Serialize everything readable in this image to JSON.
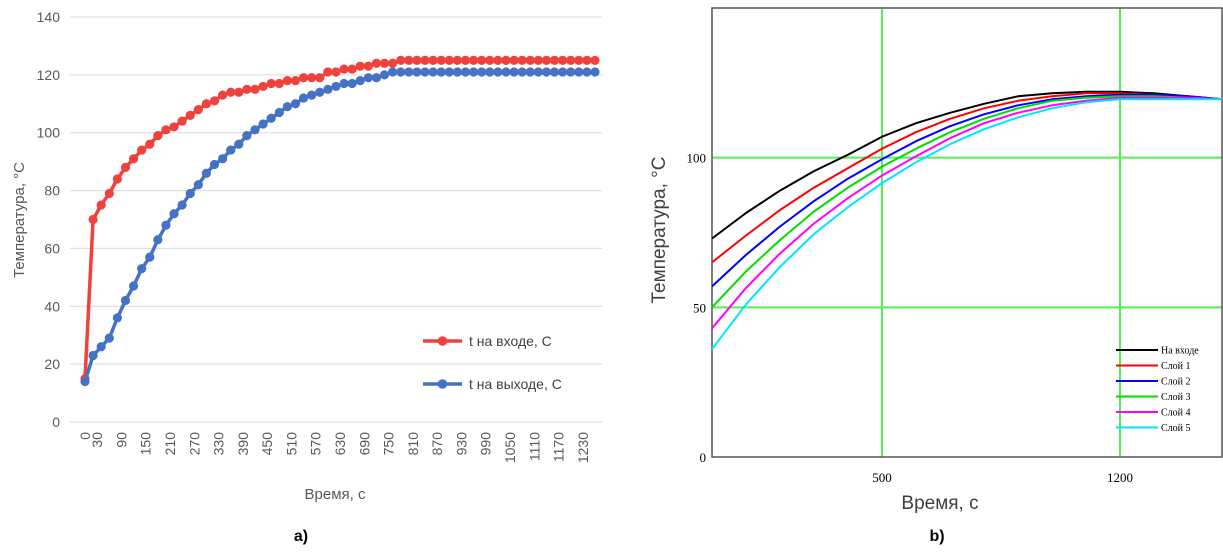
{
  "chart_data": [
    {
      "type": "line",
      "panel_label": "a)",
      "xlabel": "Время, с",
      "ylabel": "Температура, °С",
      "ylim": [
        0,
        140
      ],
      "yticks": [
        0,
        20,
        40,
        60,
        80,
        100,
        120,
        140
      ],
      "xticks": [
        "0",
        "30",
        "90",
        "150",
        "210",
        "270",
        "330",
        "390",
        "450",
        "510",
        "570",
        "630",
        "690",
        "750",
        "810",
        "870",
        "930",
        "990",
        "1050",
        "1110",
        "1170",
        "1230"
      ],
      "x": [
        0,
        20,
        40,
        60,
        80,
        100,
        120,
        140,
        160,
        180,
        200,
        220,
        240,
        260,
        280,
        300,
        320,
        340,
        360,
        380,
        400,
        420,
        440,
        460,
        480,
        500,
        520,
        540,
        560,
        580,
        600,
        620,
        640,
        660,
        680,
        700,
        720,
        740,
        760,
        780,
        800,
        820,
        840,
        860,
        880,
        900,
        920,
        940,
        960,
        980,
        1000,
        1020,
        1040,
        1060,
        1080,
        1100,
        1120,
        1140,
        1160,
        1180,
        1200,
        1220,
        1240,
        1260
      ],
      "grid": "horizontal",
      "legend_position": "bottom-right",
      "series": [
        {
          "name": "t на входе, С",
          "color": "#f0413c",
          "values": [
            15,
            70,
            75,
            79,
            84,
            88,
            91,
            94,
            96,
            99,
            101,
            102,
            104,
            106,
            108,
            110,
            111,
            113,
            114,
            114,
            115,
            115,
            116,
            117,
            117,
            118,
            118,
            119,
            119,
            119,
            121,
            121,
            122,
            122,
            123,
            123,
            124,
            124,
            124,
            125,
            125,
            125,
            125,
            125,
            125,
            125,
            125,
            125,
            125,
            125,
            125,
            125,
            125,
            125,
            125,
            125,
            125,
            125,
            125,
            125,
            125,
            125,
            125,
            125
          ]
        },
        {
          "name": "t на выходе, С",
          "color": "#4472c4",
          "values": [
            14,
            23,
            26,
            29,
            36,
            42,
            47,
            53,
            57,
            63,
            68,
            72,
            75,
            79,
            82,
            86,
            89,
            91,
            94,
            96,
            99,
            101,
            103,
            105,
            107,
            109,
            110,
            112,
            113,
            114,
            115,
            116,
            117,
            117,
            118,
            119,
            119,
            120,
            121,
            121,
            121,
            121,
            121,
            121,
            121,
            121,
            121,
            121,
            121,
            121,
            121,
            121,
            121,
            121,
            121,
            121,
            121,
            121,
            121,
            121,
            121,
            121,
            121,
            121
          ]
        }
      ]
    },
    {
      "type": "line",
      "panel_label": "b)",
      "xlabel": "Время, с",
      "ylabel": "Температура, °С",
      "xlim": [
        0,
        1500
      ],
      "ylim": [
        0,
        150
      ],
      "xticks": [
        500,
        1200
      ],
      "yticks": [
        0,
        50,
        100
      ],
      "x": [
        0,
        100,
        200,
        300,
        400,
        500,
        600,
        700,
        800,
        900,
        1000,
        1100,
        1200,
        1300,
        1400,
        1500
      ],
      "grid": "both",
      "legend_position": "bottom-right",
      "series": [
        {
          "name": "На входе",
          "color": "#000000",
          "values": [
            73,
            81.5,
            89,
            95.5,
            101,
            107,
            111.5,
            115,
            118,
            120.5,
            121.5,
            122,
            122,
            121.5,
            120.5,
            119.5
          ]
        },
        {
          "name": "Слой 1",
          "color": "#ff0000",
          "values": [
            65,
            74,
            82.5,
            90,
            96.5,
            103,
            108.5,
            113,
            116.5,
            119,
            120.5,
            121.5,
            121.5,
            121,
            120.5,
            119.5
          ]
        },
        {
          "name": "Слой 2",
          "color": "#0000ff",
          "values": [
            57,
            67.5,
            77,
            85.5,
            93,
            99.5,
            105.5,
            110.5,
            114.5,
            117.5,
            119.5,
            120.5,
            121,
            121,
            120.5,
            119.5
          ]
        },
        {
          "name": "Слой 3",
          "color": "#00dd00",
          "values": [
            50,
            62,
            72.5,
            82,
            90,
            97,
            103,
            108.5,
            113,
            116.5,
            119,
            120,
            120.5,
            120.5,
            120,
            119.5
          ]
        },
        {
          "name": "Слой 4",
          "color": "#ff00ff",
          "values": [
            43,
            56.5,
            68,
            78,
            86.5,
            94,
            100.5,
            106.5,
            111.5,
            115,
            117.5,
            119,
            120,
            120,
            120,
            119.5
          ]
        },
        {
          "name": "Слой 5",
          "color": "#00e5ff",
          "values": [
            36,
            51,
            63.5,
            74.5,
            83.5,
            91.5,
            98.5,
            104.5,
            109.5,
            113.5,
            116.5,
            118.5,
            119.5,
            119.5,
            119.5,
            119.5
          ]
        }
      ]
    }
  ]
}
